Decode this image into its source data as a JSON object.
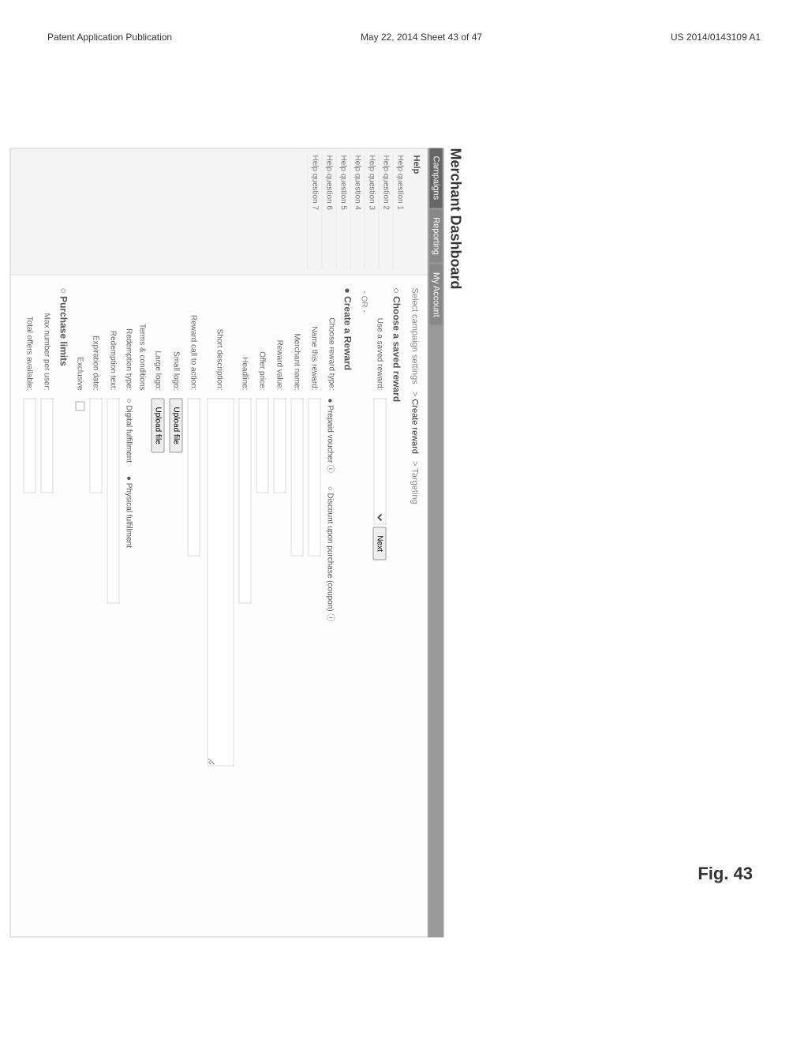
{
  "header": {
    "left": "Patent Application Publication",
    "center": "May 22, 2014  Sheet 43 of 47",
    "right": "US 2014/0143109 A1"
  },
  "figure_caption": "Fig. 43",
  "dashboard_title": "Merchant Dashboard",
  "tabs": [
    "Campaigns",
    "Reporting",
    "My Account"
  ],
  "sidebar": {
    "title": "Help",
    "items": [
      "Help question 1",
      "Help question 2",
      "Help question 3",
      "Help question 4",
      "Help question 5",
      "Help question 6",
      "Help question 7"
    ]
  },
  "breadcrumb": [
    "Select campaign settings",
    "Create reward",
    "Targeting"
  ],
  "saved_reward": {
    "title": "Choose a saved reward",
    "use_label": "Use a saved reward:",
    "next_btn": "Next"
  },
  "or_text": "- OR -",
  "create_reward": {
    "title": "Create a Reward",
    "choose_type_label": "Choose reward type:",
    "reward_types": {
      "prepaid": "Prepaid voucher",
      "discount": "Discount upon purchase (coupon)"
    },
    "fields": {
      "name_reward": "Name this reward:",
      "merchant_name": "Merchant name:",
      "reward_value": "Reward value:",
      "offer_price": "Offer price:",
      "headline": "Headline:",
      "short_desc": "Short description:",
      "call_to_action": "Reward call to action:",
      "small_logo": "Small logo:",
      "large_logo": "Large logo:",
      "upload_btn": "Upload file",
      "terms": "Terms & conditions",
      "redemption_type": "Redemption type:",
      "redemption_opts": {
        "digital": "Digital fulfillment",
        "physical": "Physical fulfillment"
      },
      "redemption_text": "Redemption text:",
      "expiration": "Expiration date:",
      "exclusive": "Exclusive"
    }
  },
  "purchase_limits": {
    "title": "Purchase limits",
    "max_per_user": "Max number per user:",
    "total_available": "Total offers available:"
  }
}
